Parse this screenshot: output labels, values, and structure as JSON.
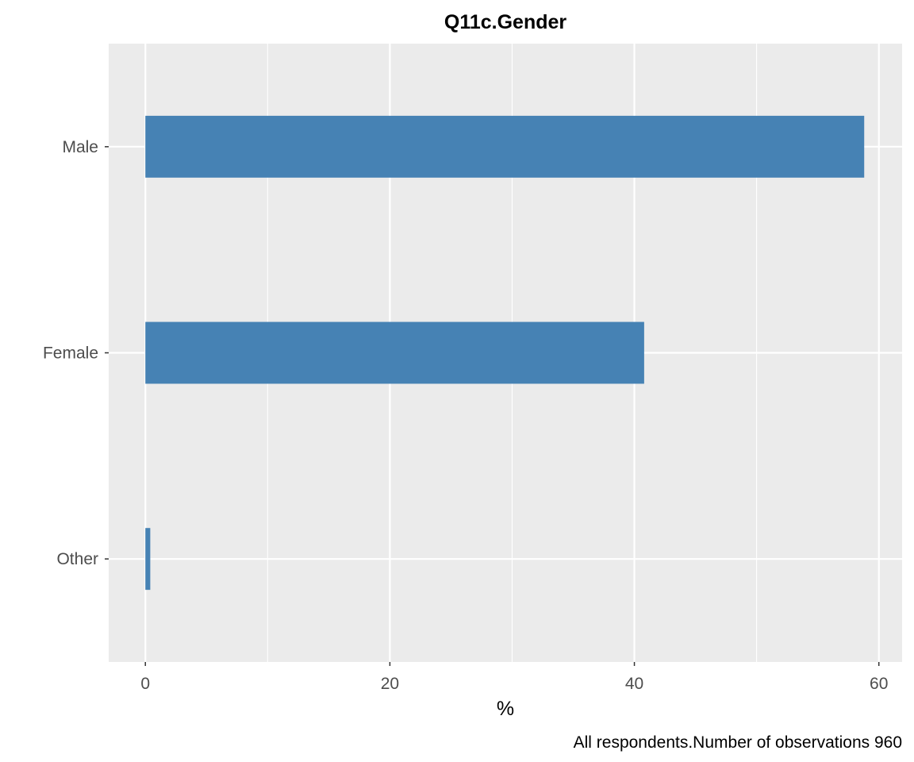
{
  "chart_data": {
    "type": "bar",
    "orientation": "horizontal",
    "title": "Q11c.Gender",
    "xlabel": "%",
    "ylabel": "",
    "categories": [
      "Male",
      "Female",
      "Other"
    ],
    "values": [
      58.8,
      40.8,
      0.4
    ],
    "xlim": [
      -3,
      61.9
    ],
    "x_ticks": [
      0,
      20,
      40,
      60
    ],
    "grid": true,
    "legend": "none",
    "caption": "All respondents.Number of observations 960",
    "colors": {
      "bar": "#4682B4",
      "panel_background": "#EBEBEB",
      "grid": "#FFFFFF",
      "tick_label": "#4D4D4D",
      "tick_mark": "#333333"
    }
  }
}
